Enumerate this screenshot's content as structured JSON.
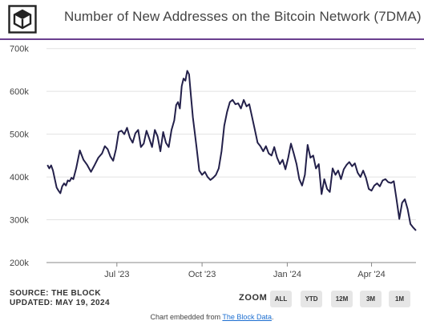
{
  "header": {
    "title": "Number of New Addresses on the Bitcoin Network (7DMA)",
    "logo_icon": "the-block-cube-logo"
  },
  "colors": {
    "line": "#23204a",
    "accent": "#6a3f8f",
    "grid": "#e2e2e2",
    "link": "#1d6fd1"
  },
  "chart_data": {
    "type": "line",
    "title": "Number of New Addresses on the Bitcoin Network (7DMA)",
    "xlabel": "",
    "ylabel": "",
    "ylim": [
      200000,
      720000
    ],
    "xlim": [
      "2023-04-16",
      "2024-05-19"
    ],
    "y_ticks": [
      {
        "value": 200000,
        "label": "200k"
      },
      {
        "value": 300000,
        "label": "300k"
      },
      {
        "value": 400000,
        "label": "400k"
      },
      {
        "value": 500000,
        "label": "500k"
      },
      {
        "value": 600000,
        "label": "600k"
      },
      {
        "value": 700000,
        "label": "700k"
      }
    ],
    "x_ticks": [
      {
        "value": "2023-07-01",
        "label": "Jul '23"
      },
      {
        "value": "2023-10-01",
        "label": "Oct '23"
      },
      {
        "value": "2024-01-01",
        "label": "Jan '24"
      },
      {
        "value": "2024-04-01",
        "label": "Apr '24"
      }
    ],
    "grid": "horizontal",
    "series": [
      {
        "x": [
          "2023-04-17",
          "2023-04-19",
          "2023-04-21",
          "2023-04-23",
          "2023-04-25",
          "2023-04-27",
          "2023-04-29",
          "2023-05-01",
          "2023-05-03",
          "2023-05-05",
          "2023-05-07",
          "2023-05-09",
          "2023-05-11",
          "2023-05-13",
          "2023-05-15",
          "2023-05-18",
          "2023-05-22",
          "2023-05-26",
          "2023-05-30",
          "2023-06-03",
          "2023-06-07",
          "2023-06-11",
          "2023-06-15",
          "2023-06-18",
          "2023-06-21",
          "2023-06-24",
          "2023-06-27",
          "2023-06-30",
          "2023-07-03",
          "2023-07-06",
          "2023-07-09",
          "2023-07-12",
          "2023-07-15",
          "2023-07-18",
          "2023-07-21",
          "2023-07-24",
          "2023-07-27",
          "2023-07-30",
          "2023-08-02",
          "2023-08-05",
          "2023-08-08",
          "2023-08-11",
          "2023-08-14",
          "2023-08-17",
          "2023-08-20",
          "2023-08-23",
          "2023-08-26",
          "2023-08-29",
          "2023-09-01",
          "2023-09-03",
          "2023-09-05",
          "2023-09-07",
          "2023-09-09",
          "2023-09-11",
          "2023-09-13",
          "2023-09-15",
          "2023-09-17",
          "2023-09-19",
          "2023-09-21",
          "2023-09-23",
          "2023-09-25",
          "2023-09-28",
          "2023-10-01",
          "2023-10-04",
          "2023-10-07",
          "2023-10-10",
          "2023-10-13",
          "2023-10-16",
          "2023-10-19",
          "2023-10-22",
          "2023-10-25",
          "2023-10-28",
          "2023-10-31",
          "2023-11-03",
          "2023-11-06",
          "2023-11-09",
          "2023-11-12",
          "2023-11-15",
          "2023-11-18",
          "2023-11-21",
          "2023-11-24",
          "2023-11-27",
          "2023-11-30",
          "2023-12-03",
          "2023-12-06",
          "2023-12-09",
          "2023-12-12",
          "2023-12-15",
          "2023-12-18",
          "2023-12-21",
          "2023-12-24",
          "2023-12-27",
          "2023-12-30",
          "2024-01-02",
          "2024-01-05",
          "2024-01-08",
          "2024-01-11",
          "2024-01-14",
          "2024-01-17",
          "2024-01-20",
          "2024-01-23",
          "2024-01-26",
          "2024-01-29",
          "2024-02-01",
          "2024-02-04",
          "2024-02-07",
          "2024-02-10",
          "2024-02-13",
          "2024-02-16",
          "2024-02-19",
          "2024-02-22",
          "2024-02-25",
          "2024-02-28",
          "2024-03-02",
          "2024-03-05",
          "2024-03-08",
          "2024-03-11",
          "2024-03-14",
          "2024-03-17",
          "2024-03-20",
          "2024-03-23",
          "2024-03-26",
          "2024-03-29",
          "2024-04-01",
          "2024-04-04",
          "2024-04-07",
          "2024-04-10",
          "2024-04-13",
          "2024-04-16",
          "2024-04-19",
          "2024-04-22",
          "2024-04-25",
          "2024-04-28",
          "2024-05-01",
          "2024-05-04",
          "2024-05-07",
          "2024-05-10",
          "2024-05-13",
          "2024-05-16",
          "2024-05-19"
        ],
        "y": [
          428000,
          420000,
          427000,
          415000,
          395000,
          375000,
          368000,
          362000,
          378000,
          385000,
          380000,
          392000,
          390000,
          398000,
          395000,
          420000,
          462000,
          440000,
          428000,
          412000,
          428000,
          445000,
          455000,
          472000,
          465000,
          448000,
          438000,
          465000,
          505000,
          508000,
          500000,
          515000,
          492000,
          480000,
          502000,
          510000,
          470000,
          478000,
          508000,
          490000,
          470000,
          510000,
          495000,
          460000,
          505000,
          480000,
          470000,
          510000,
          532000,
          568000,
          575000,
          560000,
          612000,
          630000,
          625000,
          648000,
          640000,
          590000,
          540000,
          505000,
          470000,
          415000,
          405000,
          412000,
          400000,
          393000,
          398000,
          405000,
          420000,
          460000,
          520000,
          552000,
          575000,
          580000,
          570000,
          572000,
          560000,
          580000,
          565000,
          570000,
          540000,
          510000,
          480000,
          472000,
          460000,
          472000,
          455000,
          450000,
          470000,
          445000,
          430000,
          440000,
          418000,
          445000,
          478000,
          455000,
          430000,
          395000,
          380000,
          405000,
          475000,
          445000,
          450000,
          420000,
          430000,
          360000,
          395000,
          372000,
          365000,
          420000,
          405000,
          415000,
          395000,
          418000,
          428000,
          435000,
          425000,
          432000,
          410000,
          400000,
          415000,
          398000,
          372000,
          368000,
          380000,
          385000,
          378000,
          392000,
          395000,
          388000,
          386000,
          390000,
          348000,
          302000,
          340000,
          348000,
          325000,
          290000,
          282000,
          275000
        ]
      }
    ]
  },
  "source": {
    "line1": "SOURCE: THE BLOCK",
    "line2": "UPDATED: MAY 19, 2024"
  },
  "zoom": {
    "label": "ZOOM",
    "buttons": [
      "ALL",
      "YTD",
      "12M",
      "3M",
      "1M"
    ]
  },
  "embed": {
    "prefix": "Chart embedded from ",
    "link_text": "The Block Data",
    "suffix": "."
  }
}
